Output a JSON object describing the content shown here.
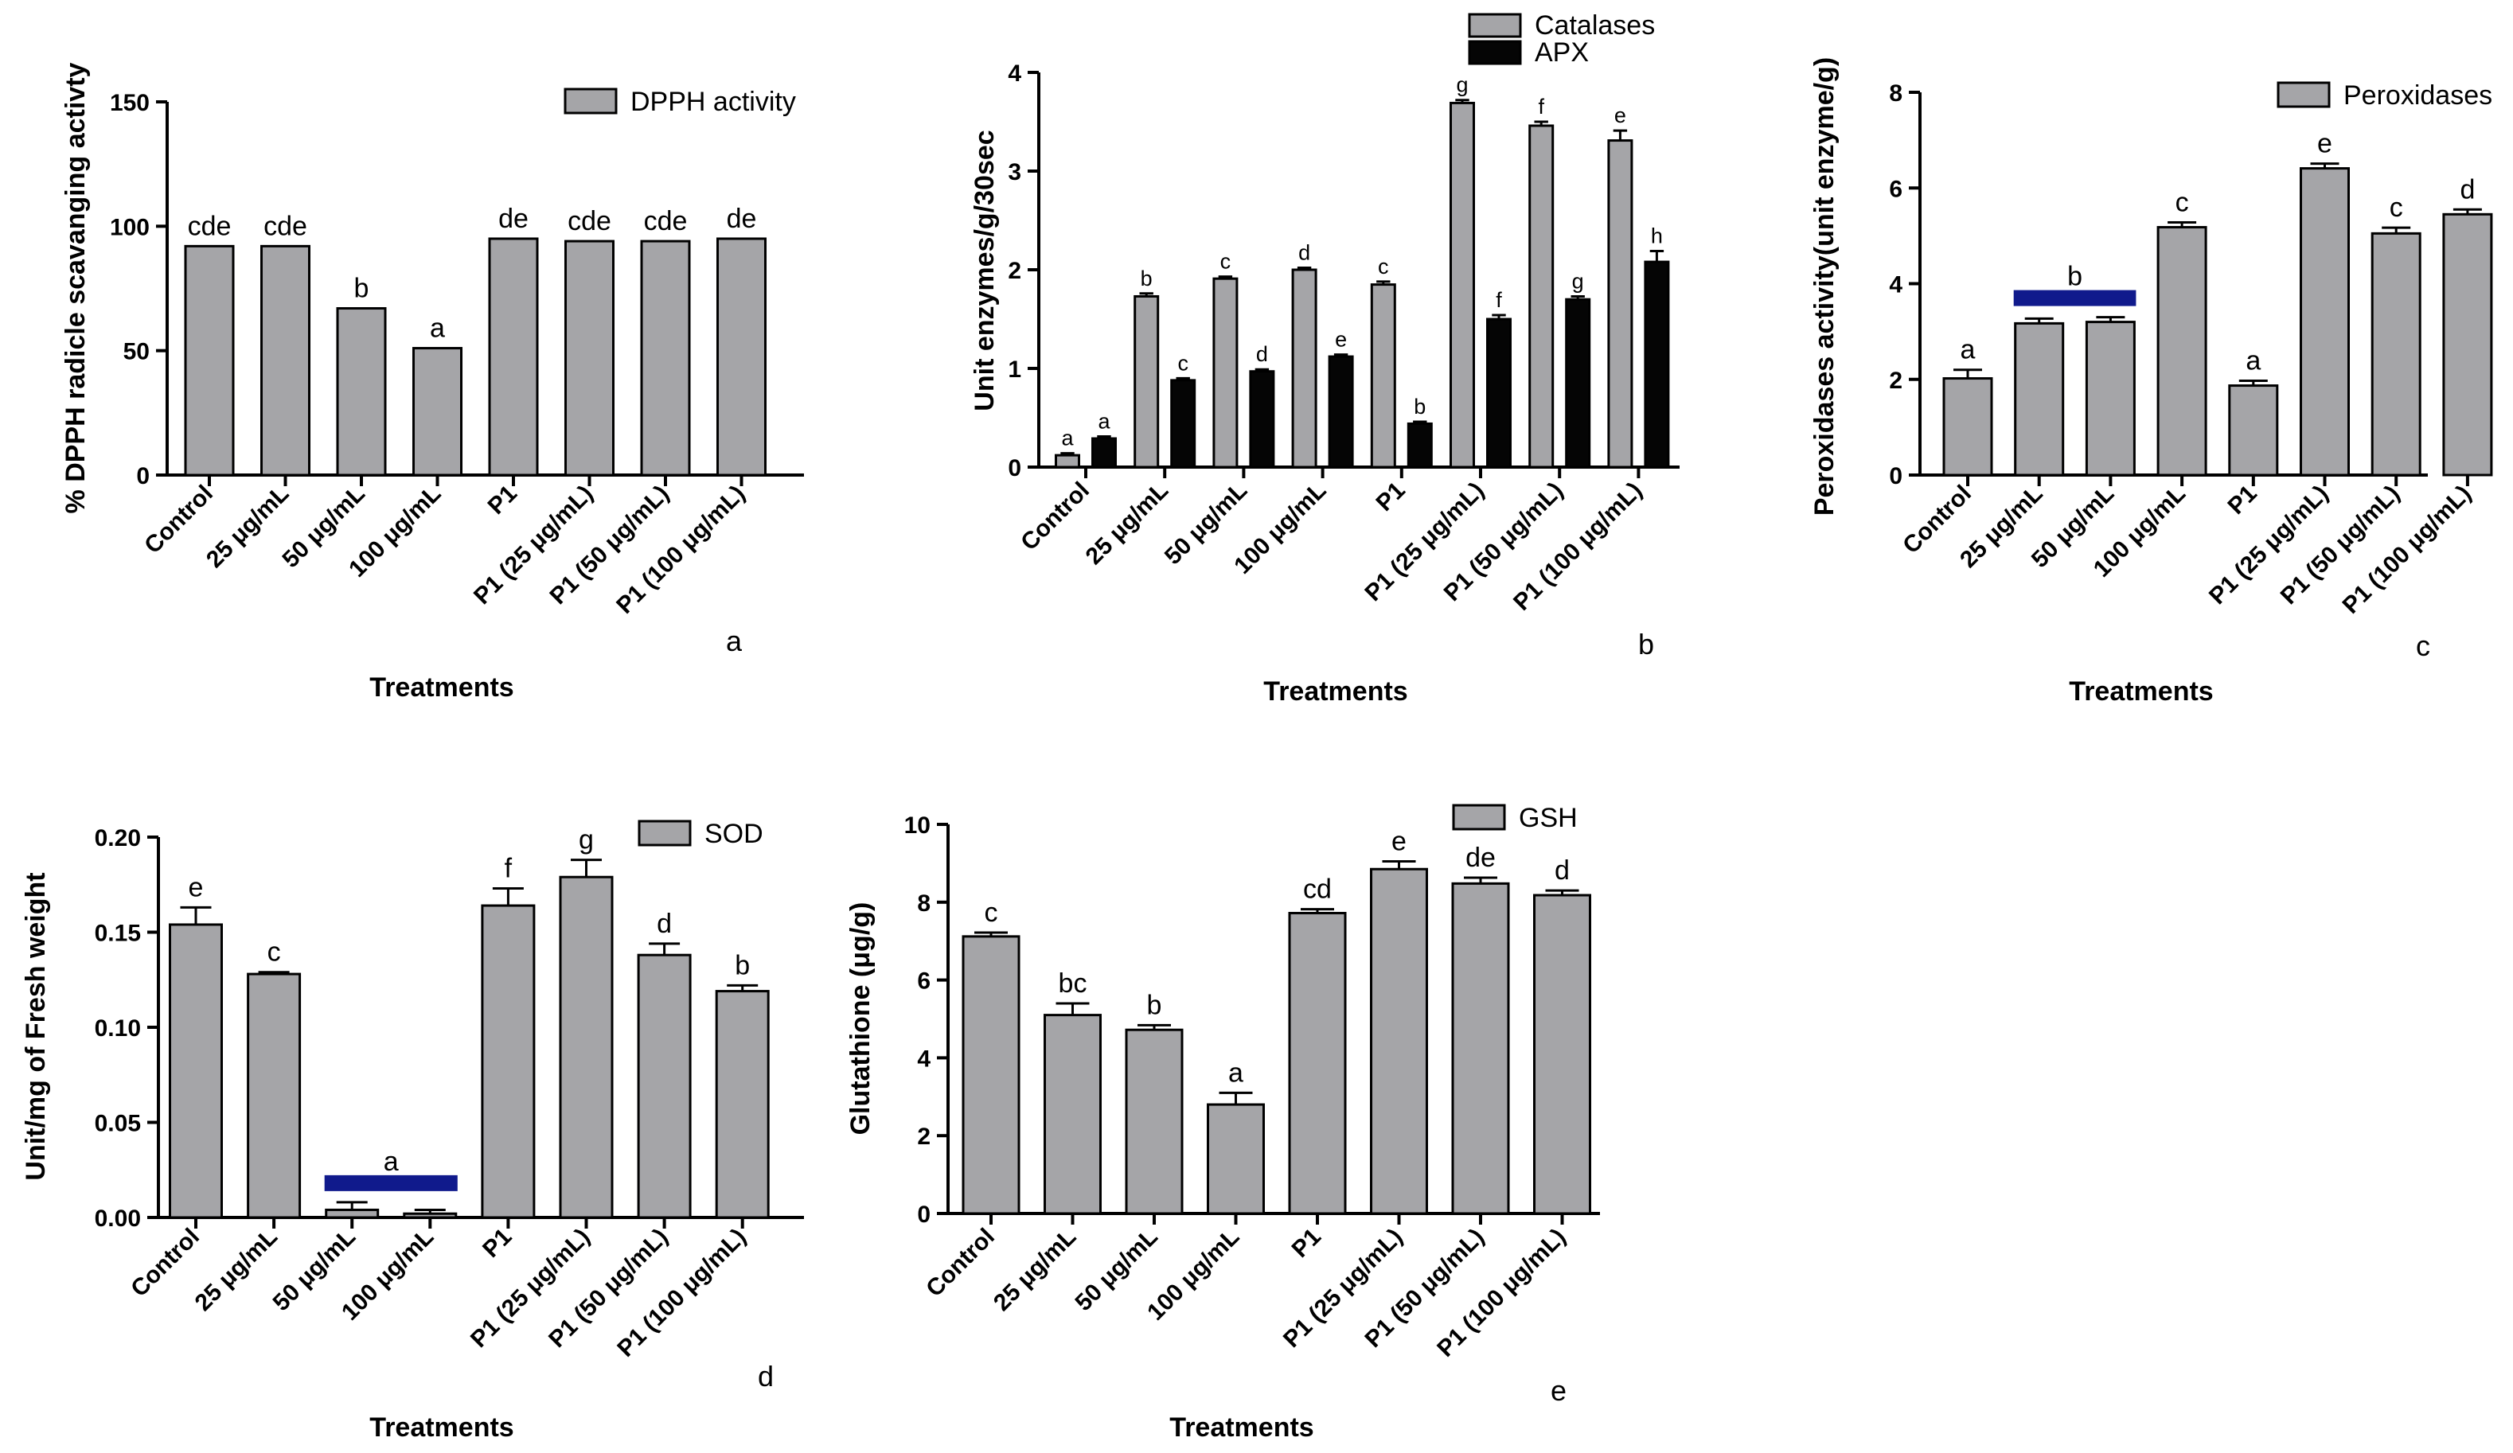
{
  "chart_data": [
    {
      "id": "a",
      "type": "bar",
      "panel_label": "a",
      "ylabel": "% DPPH radicle scavanging activty",
      "xlabel": "Treatments",
      "ylim": [
        0,
        150
      ],
      "yticks": [
        "0",
        "50",
        "100",
        "150"
      ],
      "categories": [
        "Control",
        "25 μg/mL",
        "50 μg/mL",
        "100 μg/mL",
        "P1",
        "P1 (25 μg/mL)",
        "P1 (50 μg/mL)",
        "P1 (100 μg/mL)"
      ],
      "series": [
        {
          "name": "DPPH activity",
          "color": "#a5a5a8",
          "values": [
            92,
            92,
            67,
            51,
            95,
            94,
            94,
            95
          ],
          "errors": [
            0,
            0,
            0,
            0,
            0,
            0,
            0,
            0
          ],
          "letters": [
            "cde",
            "cde",
            "b",
            "a",
            "de",
            "cde",
            "cde",
            "de"
          ]
        }
      ],
      "legend": "top-right",
      "grid": false
    },
    {
      "id": "b",
      "type": "bar",
      "panel_label": "b",
      "ylabel": "Unit enzymes/g/30sec",
      "xlabel": "Treatments",
      "ylim": [
        0,
        4
      ],
      "yticks": [
        "0",
        "1",
        "2",
        "3",
        "4"
      ],
      "categories": [
        "Control",
        "25 μg/mL",
        "50 μg/mL",
        "100 μg/mL",
        "P1",
        "P1 (25 μg/mL)",
        "P1 (50 μg/mL)",
        "P1 (100 μg/mL)"
      ],
      "series": [
        {
          "name": "Catalases",
          "color": "#a5a5a8",
          "values": [
            0.12,
            1.73,
            1.91,
            2.0,
            1.85,
            3.69,
            3.46,
            3.31
          ],
          "errors": [
            0.02,
            0.03,
            0.02,
            0.02,
            0.03,
            0.03,
            0.04,
            0.1
          ],
          "letters": [
            "a",
            "b",
            "c",
            "d",
            "c",
            "g",
            "f",
            "e"
          ]
        },
        {
          "name": "APX",
          "color": "#050505",
          "values": [
            0.29,
            0.88,
            0.97,
            1.12,
            0.44,
            1.5,
            1.7,
            2.08
          ],
          "errors": [
            0.02,
            0.02,
            0.02,
            0.02,
            0.02,
            0.04,
            0.03,
            0.11
          ],
          "letters": [
            "a",
            "c",
            "d",
            "e",
            "b",
            "f",
            "g",
            "h"
          ]
        }
      ],
      "legend": "top",
      "grid": false
    },
    {
      "id": "c",
      "type": "bar",
      "panel_label": "c",
      "ylabel": "Peroxidases activity(unit enzyme/g)",
      "xlabel": "Treatments",
      "ylim": [
        0,
        8
      ],
      "yticks": [
        "0",
        "2",
        "4",
        "6",
        "8"
      ],
      "categories": [
        "Control",
        "25 μg/mL",
        "50 μg/mL",
        "100 μg/mL",
        "P1",
        "P1 (25 μg/mL)",
        "P1 (50 μg/mL)",
        "P1 (100 μg/mL)"
      ],
      "series": [
        {
          "name": "Peroxidases",
          "color": "#a5a5a8",
          "values": [
            2.02,
            3.17,
            3.2,
            5.18,
            1.87,
            6.41,
            5.05,
            5.45
          ],
          "errors": [
            0.18,
            0.1,
            0.1,
            0.1,
            0.1,
            0.1,
            0.12,
            0.1
          ],
          "letters": [
            "a",
            "",
            "",
            "c",
            "a",
            "e",
            "c",
            "d"
          ],
          "group_letter": "b",
          "group_span": [
            1,
            2
          ]
        }
      ],
      "legend": "top-right",
      "grid": false
    },
    {
      "id": "d",
      "type": "bar",
      "panel_label": "d",
      "ylabel": "Unit/mg of Fresh weight",
      "xlabel": "Treatments",
      "ylim": [
        0,
        0.2
      ],
      "yticks": [
        "0.00",
        "0.05",
        "0.10",
        "0.15",
        "0.20"
      ],
      "categories": [
        "Control",
        "25 μg/mL",
        "50 μg/mL",
        "100 μg/mL",
        "P1",
        "P1 (25 μg/mL)",
        "P1 (50 μg/mL)",
        "P1 (100 μg/mL)"
      ],
      "series": [
        {
          "name": "SOD",
          "color": "#a5a5a8",
          "values": [
            0.154,
            0.128,
            0.004,
            0.002,
            0.164,
            0.179,
            0.138,
            0.119
          ],
          "errors": [
            0.009,
            0.001,
            0.004,
            0.002,
            0.009,
            0.009,
            0.006,
            0.003
          ],
          "letters": [
            "e",
            "c",
            "",
            "",
            "f",
            "g",
            "d",
            "b"
          ],
          "group_letter": "a",
          "group_span": [
            2,
            3
          ]
        }
      ],
      "legend": "top-right",
      "grid": false
    },
    {
      "id": "e",
      "type": "bar",
      "panel_label": "e",
      "ylabel": "Glutathione (μg/g)",
      "xlabel": "Treatments",
      "ylim": [
        0,
        10
      ],
      "yticks": [
        "0",
        "2",
        "4",
        "6",
        "8",
        "10"
      ],
      "categories": [
        "Control",
        "25 μg/mL",
        "50 μg/mL",
        "100 μg/mL",
        "P1",
        "P1 (25 μg/mL)",
        "P1 (50 μg/mL)",
        "P1 (100 μg/mL)"
      ],
      "series": [
        {
          "name": "GSH",
          "color": "#a5a5a8",
          "values": [
            7.12,
            5.1,
            4.72,
            2.8,
            7.72,
            8.85,
            8.48,
            8.18
          ],
          "errors": [
            0.1,
            0.3,
            0.12,
            0.3,
            0.1,
            0.2,
            0.15,
            0.12
          ],
          "letters": [
            "c",
            "bc",
            "b",
            "a",
            "cd",
            "e",
            "de",
            "d"
          ]
        }
      ],
      "legend": "top",
      "grid": false
    }
  ],
  "colors": {
    "group_marker": "#101a8c",
    "axis": "#000000"
  }
}
